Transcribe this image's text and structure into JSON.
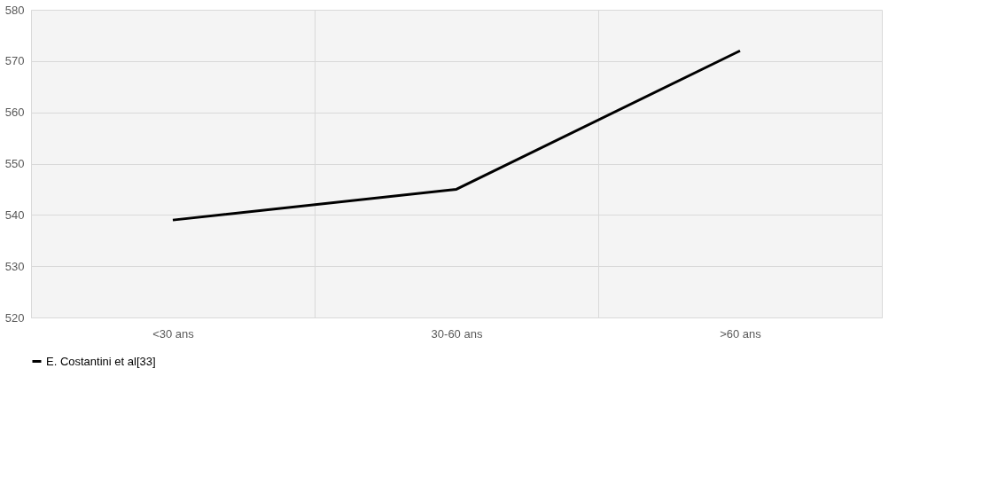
{
  "chart_data": {
    "type": "line",
    "categories": [
      "<30 ans",
      "30-60 ans",
      ">60 ans"
    ],
    "series": [
      {
        "name": "E. Costantini et al[33]",
        "color": "#000000",
        "values": [
          539,
          545,
          572
        ]
      }
    ],
    "ylim": [
      520,
      580
    ],
    "yticks": [
      520,
      530,
      540,
      550,
      560,
      570,
      580
    ],
    "grid": true,
    "legend": "bottom",
    "marker": "none",
    "line_style": "solid"
  }
}
